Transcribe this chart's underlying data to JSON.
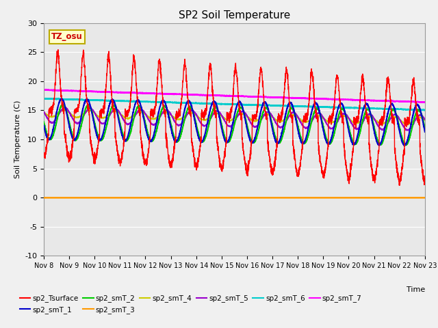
{
  "title": "SP2 Soil Temperature",
  "ylabel": "Soil Temperature (C)",
  "xlabel": "Time",
  "tz_label": "TZ_osu",
  "ylim": [
    -10,
    30
  ],
  "xlim": [
    0,
    15
  ],
  "xtick_labels": [
    "Nov 8",
    "Nov 9",
    "Nov 10",
    "Nov 11",
    "Nov 12",
    "Nov 13",
    "Nov 14",
    "Nov 15",
    "Nov 16",
    "Nov 17",
    "Nov 18",
    "Nov 19",
    "Nov 20",
    "Nov 21",
    "Nov 22",
    "Nov 23"
  ],
  "ytick_vals": [
    -10,
    -5,
    0,
    5,
    10,
    15,
    20,
    25,
    30
  ],
  "series_colors": {
    "sp2_Tsurface": "#ff0000",
    "sp2_smT_1": "#0000cc",
    "sp2_smT_2": "#00cc00",
    "sp2_smT_3": "#ff9900",
    "sp2_smT_4": "#cccc00",
    "sp2_smT_5": "#9900cc",
    "sp2_smT_6": "#00cccc",
    "sp2_smT_7": "#ff00ff"
  },
  "fig_facecolor": "#f0f0f0",
  "ax_facecolor": "#e8e8e8",
  "grid_color": "#ffffff",
  "figsize": [
    6.4,
    4.8
  ],
  "dpi": 100
}
